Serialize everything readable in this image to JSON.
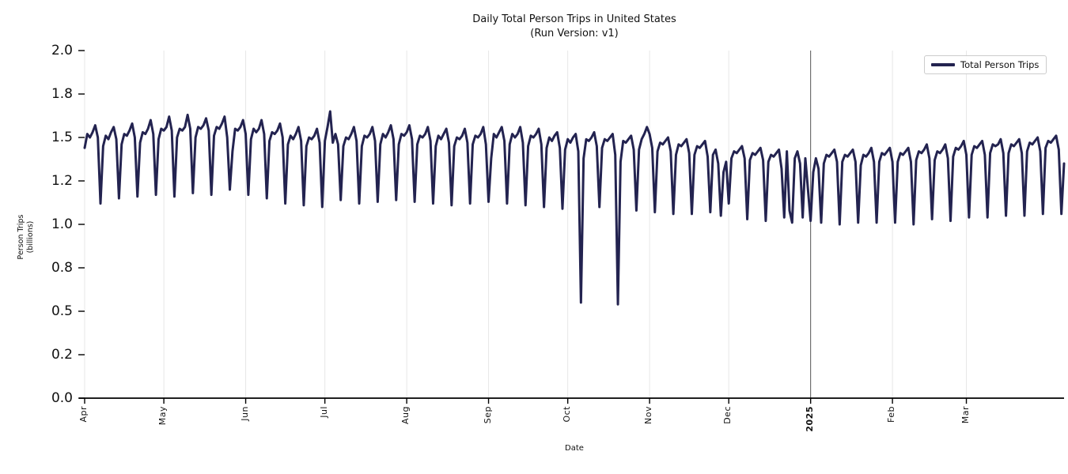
{
  "title": {
    "line1": "Daily Total Person Trips in United States",
    "line2": "(Run Version: v1)"
  },
  "legend": {
    "label": "Total Person Trips"
  },
  "axes": {
    "x_label": "Date",
    "y_label_line1": "Person Trips",
    "y_label_line2": "(billions)",
    "ylim": [
      0.0,
      2.0
    ],
    "y_ticks": [
      {
        "value": 0.0,
        "label": "0.0"
      },
      {
        "value": 0.25,
        "label": "0.2"
      },
      {
        "value": 0.5,
        "label": "0.5"
      },
      {
        "value": 0.75,
        "label": "0.8"
      },
      {
        "value": 1.0,
        "label": "1.0"
      },
      {
        "value": 1.25,
        "label": "1.2"
      },
      {
        "value": 1.5,
        "label": "1.5"
      },
      {
        "value": 1.75,
        "label": "1.8"
      },
      {
        "value": 2.0,
        "label": "2.0"
      }
    ],
    "x_ticks": [
      {
        "day": 0,
        "label": "Apr",
        "bold": false
      },
      {
        "day": 30,
        "label": "May",
        "bold": false
      },
      {
        "day": 61,
        "label": "Jun",
        "bold": false
      },
      {
        "day": 91,
        "label": "Jul",
        "bold": false
      },
      {
        "day": 122,
        "label": "Aug",
        "bold": false
      },
      {
        "day": 153,
        "label": "Sep",
        "bold": false
      },
      {
        "day": 183,
        "label": "Oct",
        "bold": false
      },
      {
        "day": 214,
        "label": "Nov",
        "bold": false
      },
      {
        "day": 244,
        "label": "Dec",
        "bold": false
      },
      {
        "day": 275,
        "label": "2025",
        "bold": true
      },
      {
        "day": 306,
        "label": "Feb",
        "bold": false
      },
      {
        "day": 334,
        "label": "Mar",
        "bold": false
      }
    ]
  },
  "colors": {
    "line": "#232350",
    "gridline": "#e7e7e7",
    "year_boundary": "#595959",
    "spine": "#000000",
    "tick": "#000000"
  },
  "chart_data": {
    "type": "line",
    "title": "Daily Total Person Trips in United States (Run Version: v1)",
    "xlabel": "Date",
    "ylabel": "Person Trips (billions)",
    "ylim": [
      0.0,
      2.0
    ],
    "grid": "vertical-months-only",
    "legend_position": "upper right",
    "x_frequency": "daily",
    "x_start_month": "Apr 2024",
    "x_end_month": "early Apr 2025",
    "year_boundary_day": 275,
    "series": [
      {
        "name": "Total Person Trips",
        "color": "#232350",
        "values": [
          1.44,
          1.52,
          1.5,
          1.53,
          1.57,
          1.5,
          1.12,
          1.45,
          1.51,
          1.49,
          1.53,
          1.56,
          1.49,
          1.15,
          1.46,
          1.52,
          1.51,
          1.54,
          1.58,
          1.5,
          1.16,
          1.47,
          1.53,
          1.52,
          1.55,
          1.6,
          1.52,
          1.17,
          1.49,
          1.55,
          1.54,
          1.56,
          1.62,
          1.54,
          1.16,
          1.5,
          1.55,
          1.54,
          1.56,
          1.63,
          1.55,
          1.18,
          1.5,
          1.56,
          1.55,
          1.57,
          1.61,
          1.54,
          1.17,
          1.51,
          1.56,
          1.55,
          1.58,
          1.62,
          1.5,
          1.2,
          1.42,
          1.55,
          1.54,
          1.56,
          1.6,
          1.52,
          1.17,
          1.49,
          1.55,
          1.53,
          1.55,
          1.6,
          1.52,
          1.15,
          1.48,
          1.53,
          1.52,
          1.54,
          1.58,
          1.5,
          1.12,
          1.46,
          1.51,
          1.49,
          1.52,
          1.56,
          1.48,
          1.11,
          1.45,
          1.5,
          1.49,
          1.51,
          1.55,
          1.47,
          1.1,
          1.48,
          1.56,
          1.65,
          1.47,
          1.52,
          1.46,
          1.14,
          1.45,
          1.5,
          1.49,
          1.52,
          1.56,
          1.48,
          1.12,
          1.45,
          1.51,
          1.5,
          1.52,
          1.56,
          1.48,
          1.13,
          1.46,
          1.52,
          1.5,
          1.53,
          1.57,
          1.49,
          1.14,
          1.46,
          1.52,
          1.51,
          1.53,
          1.57,
          1.49,
          1.13,
          1.46,
          1.51,
          1.5,
          1.52,
          1.56,
          1.48,
          1.12,
          1.45,
          1.51,
          1.49,
          1.52,
          1.55,
          1.47,
          1.11,
          1.45,
          1.5,
          1.49,
          1.51,
          1.55,
          1.47,
          1.12,
          1.46,
          1.51,
          1.5,
          1.52,
          1.56,
          1.46,
          1.13,
          1.38,
          1.52,
          1.5,
          1.53,
          1.56,
          1.48,
          1.12,
          1.46,
          1.52,
          1.5,
          1.52,
          1.56,
          1.47,
          1.11,
          1.45,
          1.51,
          1.5,
          1.52,
          1.55,
          1.46,
          1.1,
          1.44,
          1.5,
          1.48,
          1.51,
          1.53,
          1.44,
          1.09,
          1.43,
          1.49,
          1.47,
          1.5,
          1.52,
          1.42,
          0.55,
          1.38,
          1.49,
          1.48,
          1.5,
          1.53,
          1.45,
          1.1,
          1.44,
          1.49,
          1.48,
          1.5,
          1.52,
          1.4,
          0.54,
          1.36,
          1.48,
          1.47,
          1.49,
          1.51,
          1.43,
          1.08,
          1.43,
          1.49,
          1.52,
          1.56,
          1.52,
          1.44,
          1.07,
          1.42,
          1.47,
          1.46,
          1.48,
          1.5,
          1.42,
          1.06,
          1.4,
          1.46,
          1.45,
          1.47,
          1.49,
          1.41,
          1.06,
          1.4,
          1.45,
          1.44,
          1.46,
          1.48,
          1.39,
          1.07,
          1.4,
          1.43,
          1.35,
          1.05,
          1.3,
          1.36,
          1.12,
          1.38,
          1.42,
          1.41,
          1.43,
          1.45,
          1.38,
          1.03,
          1.37,
          1.41,
          1.4,
          1.42,
          1.44,
          1.37,
          1.02,
          1.36,
          1.4,
          1.39,
          1.41,
          1.43,
          1.32,
          1.04,
          1.42,
          1.08,
          1.01,
          1.38,
          1.42,
          1.35,
          1.04,
          1.38,
          1.2,
          1.02,
          1.3,
          1.38,
          1.32,
          1.01,
          1.35,
          1.4,
          1.39,
          1.41,
          1.43,
          1.36,
          1.0,
          1.36,
          1.4,
          1.39,
          1.41,
          1.43,
          1.36,
          1.01,
          1.34,
          1.4,
          1.39,
          1.41,
          1.44,
          1.36,
          1.01,
          1.36,
          1.41,
          1.4,
          1.42,
          1.44,
          1.36,
          1.01,
          1.36,
          1.41,
          1.4,
          1.42,
          1.44,
          1.36,
          1.0,
          1.37,
          1.42,
          1.41,
          1.43,
          1.46,
          1.38,
          1.03,
          1.37,
          1.42,
          1.41,
          1.43,
          1.46,
          1.38,
          1.02,
          1.39,
          1.44,
          1.43,
          1.45,
          1.48,
          1.4,
          1.04,
          1.4,
          1.45,
          1.44,
          1.46,
          1.48,
          1.4,
          1.04,
          1.41,
          1.46,
          1.45,
          1.46,
          1.49,
          1.41,
          1.05,
          1.41,
          1.46,
          1.45,
          1.47,
          1.49,
          1.41,
          1.05,
          1.42,
          1.47,
          1.46,
          1.48,
          1.5,
          1.42,
          1.06,
          1.44,
          1.48,
          1.47,
          1.49,
          1.51,
          1.43,
          1.06,
          1.35
        ]
      }
    ]
  }
}
